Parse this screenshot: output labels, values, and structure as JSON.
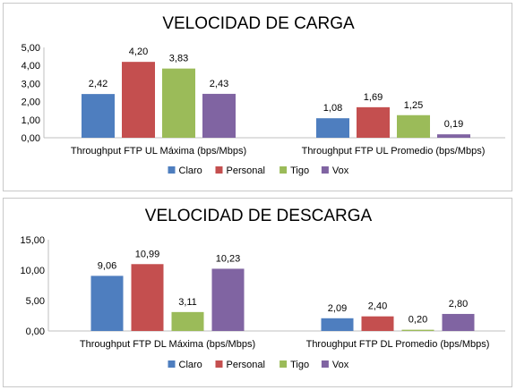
{
  "colors": {
    "Claro": "#4e7ebf",
    "Personal": "#c44f4f",
    "Tigo": "#9bbb59",
    "Vox": "#8064a2"
  },
  "chart_data": [
    {
      "type": "bar",
      "title": "VELOCIDAD DE CARGA",
      "categories": [
        "Throughput FTP UL Máxima (bps/Mbps)",
        "Throughput FTP UL Promedio (bps/Mbps)"
      ],
      "series": [
        {
          "name": "Claro",
          "values": [
            2.42,
            1.08
          ],
          "labels": [
            "2,42",
            "1,08"
          ]
        },
        {
          "name": "Personal",
          "values": [
            4.2,
            1.69
          ],
          "labels": [
            "4,20",
            "1,69"
          ]
        },
        {
          "name": "Tigo",
          "values": [
            3.83,
            1.25
          ],
          "labels": [
            "3,83",
            "1,25"
          ]
        },
        {
          "name": "Vox",
          "values": [
            2.43,
            0.19
          ],
          "labels": [
            "2,43",
            "0,19"
          ]
        }
      ],
      "ylim": [
        0,
        5
      ],
      "yticks": [
        "0,00",
        "1,00",
        "2,00",
        "3,00",
        "4,00",
        "5,00"
      ],
      "legend_position": "bottom",
      "grid": false
    },
    {
      "type": "bar",
      "title": "VELOCIDAD DE DESCARGA",
      "categories": [
        "Throughput FTP DL Máxima (bps/Mbps)",
        "Throughput FTP DL Promedio (bps/Mbps)"
      ],
      "series": [
        {
          "name": "Claro",
          "values": [
            9.06,
            2.09
          ],
          "labels": [
            "9,06",
            "2,09"
          ]
        },
        {
          "name": "Personal",
          "values": [
            10.99,
            2.4
          ],
          "labels": [
            "10,99",
            "2,40"
          ]
        },
        {
          "name": "Tigo",
          "values": [
            3.11,
            0.2
          ],
          "labels": [
            "3,11",
            "0,20"
          ]
        },
        {
          "name": "Vox",
          "values": [
            10.23,
            2.8
          ],
          "labels": [
            "10,23",
            "2,80"
          ]
        }
      ],
      "ylim": [
        0,
        15
      ],
      "yticks": [
        "0,00",
        "5,00",
        "10,00",
        "15,00"
      ],
      "legend_position": "bottom",
      "grid": false
    }
  ]
}
